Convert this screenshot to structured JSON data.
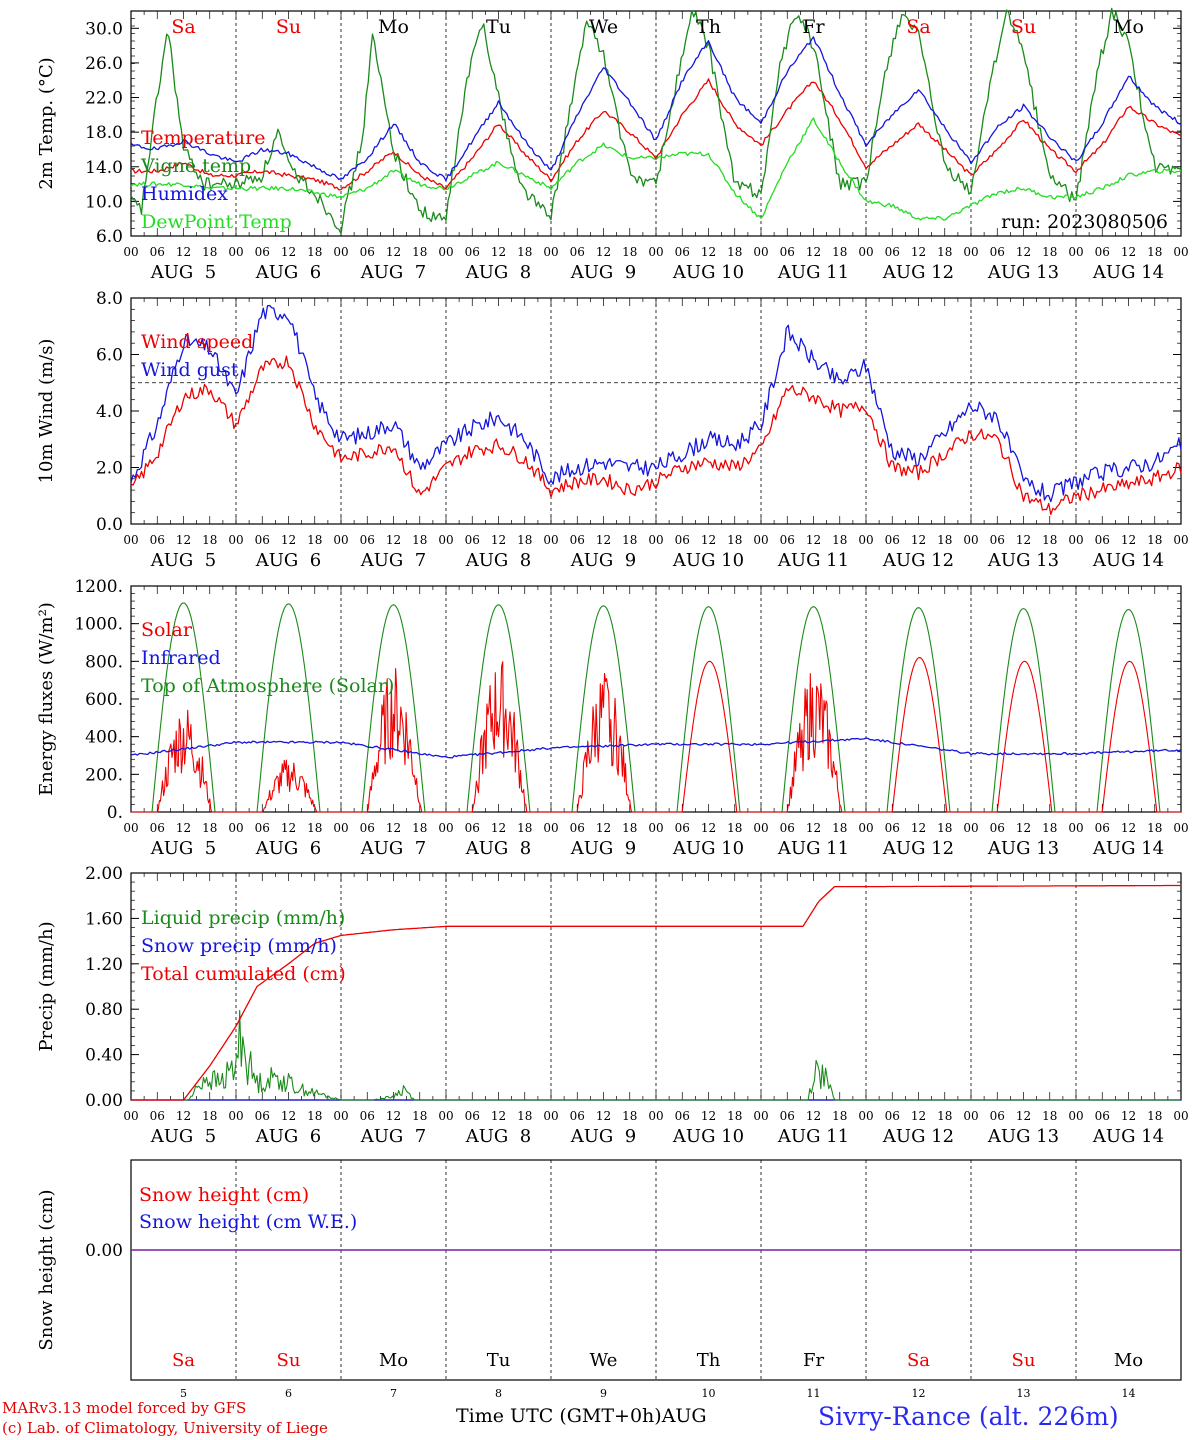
{
  "meta": {
    "run_label": "run: 2023080506",
    "footer_model": "MARv3.13 model forced by GFS",
    "footer_credit": "(c) Lab. of Climatology, University of Liege",
    "xaxis_title": "Time UTC (GMT+0h)",
    "xaxis_month": "AUG",
    "station": "Sivry-Rance (alt. 226m)"
  },
  "days": [
    "Sa",
    "Su",
    "Mo",
    "Tu",
    "We",
    "Th",
    "Fr",
    "Sa",
    "Su",
    "Mo"
  ],
  "weekend": [
    true,
    true,
    false,
    false,
    false,
    false,
    false,
    true,
    true,
    false
  ],
  "dates": [
    "AUG  5",
    "AUG  6",
    "AUG  7",
    "AUG  8",
    "AUG  9",
    "AUG 10",
    "AUG 11",
    "AUG 12",
    "AUG 13",
    "AUG 14"
  ],
  "day_numbers": [
    "5",
    "6",
    "7",
    "8",
    "9",
    "10",
    "11",
    "12",
    "13",
    "14"
  ],
  "hour_ticks": [
    "00",
    "06",
    "12",
    "18"
  ],
  "colors": {
    "red": "#ee0000",
    "green": "#1a8a1a",
    "blue": "#1515dd",
    "lightgreen": "#22dd22",
    "purple": "#7a1fa2"
  },
  "chart_data": [
    {
      "type": "line",
      "ylabel": "2m Temp. (°C)",
      "ylim": [
        6,
        32
      ],
      "yticks": [
        "6.0",
        "10.0",
        "14.0",
        "18.0",
        "22.0",
        "26.0",
        "30.0"
      ],
      "x_unit": "days since AUG 5 00 UTC",
      "series": [
        {
          "name": "Temperature",
          "color": "red",
          "x": [
            0,
            0.25,
            0.5,
            0.75,
            1,
            1.25,
            1.5,
            1.75,
            2,
            2.25,
            2.5,
            2.75,
            3,
            3.25,
            3.5,
            3.75,
            4,
            4.25,
            4.5,
            4.75,
            5,
            5.25,
            5.5,
            5.75,
            6,
            6.25,
            6.5,
            6.75,
            7,
            7.25,
            7.5,
            7.75,
            8,
            8.25,
            8.5,
            8.75,
            9,
            9.25,
            9.5,
            9.75,
            10
          ],
          "y": [
            13.5,
            13.5,
            14.5,
            13,
            13,
            13.5,
            13,
            12.5,
            11.5,
            13.5,
            15.8,
            13,
            11.5,
            15,
            19,
            15.5,
            12.5,
            17,
            20.5,
            18,
            15,
            20,
            24,
            19,
            16.5,
            20.5,
            24,
            19.5,
            14,
            16.5,
            19,
            16,
            13,
            16,
            19.5,
            16,
            13.5,
            16.5,
            21,
            19,
            17.5
          ]
        },
        {
          "name": "Vigne temp",
          "color": "green",
          "x": [
            0,
            0.1,
            0.25,
            0.35,
            0.5,
            0.7,
            1,
            1.25,
            1.4,
            1.5,
            1.75,
            2,
            2.2,
            2.3,
            2.5,
            2.7,
            2.85,
            3,
            3.2,
            3.35,
            3.5,
            3.7,
            4,
            4.2,
            4.35,
            4.5,
            4.75,
            5,
            5.2,
            5.35,
            5.5,
            5.75,
            6,
            6.2,
            6.35,
            6.5,
            6.75,
            7,
            7.2,
            7.35,
            7.5,
            7.75,
            8,
            8.2,
            8.35,
            8.5,
            8.75,
            9,
            9.2,
            9.35,
            9.5,
            9.75,
            10
          ],
          "y": [
            10,
            9,
            22,
            30,
            16,
            12,
            12,
            13,
            18,
            14,
            11,
            7,
            17,
            29,
            16,
            10,
            8,
            8,
            24,
            31,
            22,
            12,
            8,
            22,
            31,
            27,
            13,
            12,
            24,
            32,
            28,
            12,
            11,
            27,
            32,
            28,
            12,
            12,
            26,
            32,
            29,
            14,
            11,
            25,
            32,
            27,
            13,
            10,
            25,
            32,
            28,
            14,
            13
          ]
        },
        {
          "name": "Humidex",
          "color": "blue",
          "x": [
            0,
            0.25,
            0.5,
            0.75,
            1,
            1.25,
            1.5,
            1.75,
            2,
            2.25,
            2.5,
            2.75,
            3,
            3.25,
            3.5,
            3.75,
            4,
            4.25,
            4.5,
            4.75,
            5,
            5.25,
            5.5,
            5.75,
            6,
            6.25,
            6.5,
            6.75,
            7,
            7.25,
            7.5,
            7.75,
            8,
            8.25,
            8.5,
            8.75,
            9,
            9.25,
            9.5,
            9.75,
            10
          ],
          "y": [
            16.5,
            16,
            17,
            15.5,
            14.5,
            16,
            15.5,
            14,
            12.5,
            15,
            19,
            14.5,
            12.5,
            17,
            21.5,
            17,
            13.5,
            20,
            25.5,
            21.5,
            17,
            24,
            28.5,
            22,
            19,
            25,
            29,
            22.5,
            16.5,
            20,
            23,
            18.5,
            14.5,
            18.5,
            21,
            17.5,
            14.5,
            19,
            24.5,
            21,
            19
          ]
        },
        {
          "name": "DewPoint Temp",
          "color": "lightgreen",
          "x": [
            0,
            0.25,
            0.5,
            0.75,
            1,
            1.25,
            1.5,
            1.75,
            2,
            2.25,
            2.5,
            2.75,
            3,
            3.25,
            3.5,
            3.75,
            4,
            4.25,
            4.5,
            4.75,
            5,
            5.25,
            5.5,
            5.75,
            6,
            6.25,
            6.5,
            6.75,
            7,
            7.25,
            7.5,
            7.75,
            8,
            8.25,
            8.5,
            8.75,
            9,
            9.25,
            9.5,
            9.75,
            10
          ],
          "y": [
            12,
            12,
            12,
            11.5,
            11.5,
            11.5,
            11.5,
            11,
            10.5,
            11.5,
            13.5,
            12,
            11.5,
            13,
            14.5,
            13,
            11.5,
            14.5,
            16.5,
            15,
            15,
            15.5,
            15.5,
            11,
            8,
            14.5,
            19.5,
            14.5,
            10,
            9.5,
            8,
            8,
            9.5,
            11,
            11.5,
            10.5,
            10.5,
            11.5,
            13,
            13.5,
            13.5
          ]
        }
      ]
    },
    {
      "type": "line",
      "ylabel": "10m Wind (m/s)",
      "ylim": [
        0,
        8
      ],
      "yticks": [
        "0.0",
        "2.0",
        "4.0",
        "6.0",
        "8.0"
      ],
      "reference_line": 5,
      "x_unit": "days since AUG 5 00 UTC",
      "series": [
        {
          "name": "Wind speed",
          "color": "red",
          "x": [
            0,
            0.25,
            0.5,
            0.75,
            1,
            1.25,
            1.5,
            1.75,
            2,
            2.25,
            2.5,
            2.75,
            3,
            3.25,
            3.5,
            3.75,
            4,
            4.25,
            4.5,
            4.75,
            5,
            5.25,
            5.5,
            5.75,
            6,
            6.25,
            6.5,
            6.75,
            7,
            7.25,
            7.5,
            7.75,
            8,
            8.25,
            8.5,
            8.75,
            9,
            9.25,
            9.5,
            9.75,
            10
          ],
          "y": [
            1.2,
            2.5,
            4.5,
            4.8,
            3.5,
            5.5,
            5.8,
            3.5,
            2.3,
            2.5,
            2.8,
            1.0,
            2.0,
            2.6,
            2.8,
            2.3,
            1.2,
            1.5,
            1.6,
            1.2,
            1.5,
            2.0,
            2.2,
            2.0,
            2.6,
            4.8,
            4.5,
            4.0,
            4.2,
            2.0,
            1.8,
            2.5,
            3.2,
            3.0,
            1.0,
            0.5,
            1.0,
            1.2,
            1.4,
            1.6,
            2.0
          ]
        },
        {
          "name": "Wind gust",
          "color": "blue",
          "x": [
            0,
            0.25,
            0.5,
            0.75,
            1,
            1.25,
            1.5,
            1.75,
            2,
            2.25,
            2.5,
            2.75,
            3,
            3.25,
            3.5,
            3.75,
            4,
            4.25,
            4.5,
            4.75,
            5,
            5.25,
            5.5,
            5.75,
            6,
            6.25,
            6.5,
            6.75,
            7,
            7.25,
            7.5,
            7.75,
            8,
            8.25,
            8.5,
            8.75,
            9,
            9.25,
            9.5,
            9.75,
            10
          ],
          "y": [
            1.5,
            3.5,
            6.5,
            6.2,
            4.5,
            7.5,
            7.5,
            4.5,
            3.0,
            3.2,
            3.6,
            2.0,
            2.8,
            3.4,
            3.8,
            3.0,
            1.6,
            2.0,
            2.2,
            2.0,
            2.0,
            2.5,
            3.0,
            2.8,
            3.5,
            6.8,
            5.8,
            5.0,
            5.6,
            2.6,
            2.3,
            3.2,
            4.2,
            3.8,
            1.5,
            1.0,
            1.5,
            1.8,
            2.0,
            2.2,
            2.8
          ]
        }
      ]
    },
    {
      "type": "line",
      "ylabel": "Energy fluxes (W/m²)",
      "ylim": [
        0,
        1200
      ],
      "yticks": [
        "0.",
        "200.",
        "400.",
        "600.",
        "800.",
        "1000.",
        "1200."
      ],
      "x_unit": "days since AUG 5 00 UTC",
      "series": [
        {
          "name": "Solar",
          "color": "red",
          "day_peaks": [
            580,
            290,
            780,
            820,
            760,
            800,
            780,
            820,
            800,
            800
          ]
        },
        {
          "name": "Infrared",
          "color": "blue",
          "x": [
            0,
            1,
            2,
            3,
            4,
            5,
            6,
            7,
            8,
            9,
            10
          ],
          "y": [
            300,
            370,
            370,
            290,
            340,
            360,
            360,
            390,
            310,
            310,
            330
          ]
        },
        {
          "name": "Top of Atmosphere (Solar)",
          "color": "green",
          "day_peaks": [
            1110,
            1105,
            1100,
            1100,
            1095,
            1090,
            1090,
            1085,
            1080,
            1075
          ]
        }
      ]
    },
    {
      "type": "line",
      "ylabel": "Precip (mm/h)",
      "ylim": [
        0,
        2
      ],
      "yticks": [
        "0.00",
        "0.40",
        "0.80",
        "1.20",
        "1.60",
        "2.00"
      ],
      "x_unit": "days since AUG 5 00 UTC",
      "series": [
        {
          "name": "Liquid precip (mm/h)",
          "color": "green",
          "x": [
            0.55,
            0.7,
            0.85,
            1.0,
            1.05,
            1.1,
            1.2,
            1.4,
            1.6,
            1.8,
            2.0,
            2.3,
            2.5,
            2.6,
            2.7,
            6.45,
            6.5,
            6.6,
            6.7
          ],
          "y": [
            0,
            0.2,
            0.15,
            0.3,
            0.65,
            0.35,
            0.15,
            0.2,
            0.1,
            0.05,
            0,
            0,
            0.03,
            0.1,
            0,
            0,
            0.25,
            0.22,
            0
          ]
        },
        {
          "name": "Snow precip (mm/h)",
          "color": "blue",
          "x": [
            0,
            10
          ],
          "y": [
            0,
            0
          ]
        },
        {
          "name": "Total cumulated (cm)",
          "color": "red",
          "x": [
            0,
            0.5,
            0.75,
            1,
            1.2,
            1.5,
            1.75,
            2,
            2.5,
            3,
            6.4,
            6.55,
            6.7,
            7,
            10
          ],
          "y": [
            0,
            0,
            0.3,
            0.65,
            1.0,
            1.2,
            1.38,
            1.45,
            1.5,
            1.53,
            1.53,
            1.75,
            1.88,
            1.88,
            1.89
          ]
        }
      ]
    },
    {
      "type": "line",
      "ylabel": "Snow height (cm)",
      "yticks": [
        "0.00"
      ],
      "x_unit": "days since AUG 5 00 UTC",
      "series": [
        {
          "name": "Snow height (cm)",
          "color": "red",
          "x": [
            0,
            10
          ],
          "y": [
            0,
            0
          ]
        },
        {
          "name": "Snow height (cm W.E.)",
          "color": "blue",
          "x": [
            0,
            10
          ],
          "y": [
            0,
            0
          ]
        }
      ]
    }
  ]
}
